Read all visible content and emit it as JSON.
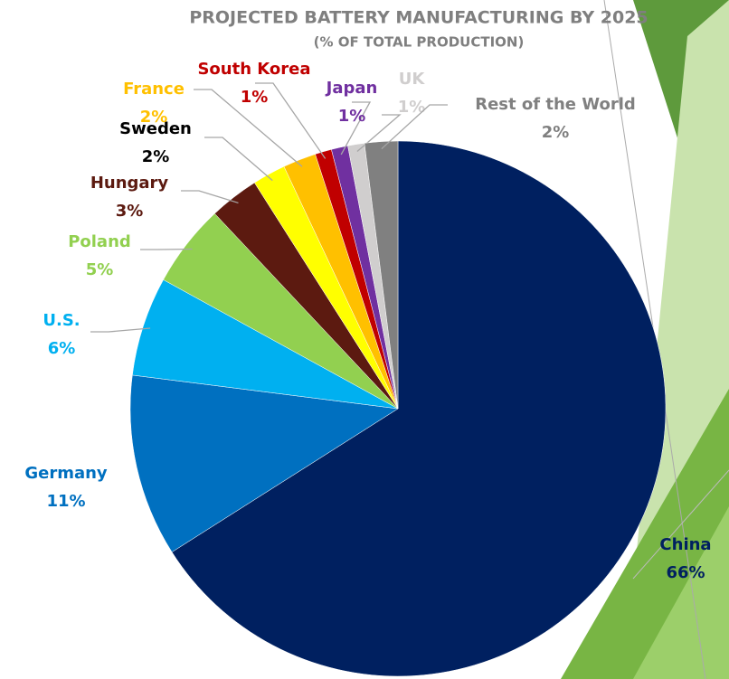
{
  "chart_data": {
    "type": "pie",
    "title": "PROJECTED BATTERY MANUFACTURING BY 2025",
    "subtitle": "(% OF TOTAL PRODUCTION)",
    "categories": [
      "China",
      "Germany",
      "U.S.",
      "Poland",
      "Hungary",
      "Sweden",
      "France",
      "South Korea",
      "Japan",
      "UK",
      "Rest of the World"
    ],
    "values": [
      66,
      11,
      6,
      5,
      3,
      2,
      2,
      1,
      1,
      1,
      2
    ],
    "value_labels": [
      "66%",
      "11%",
      "6%",
      "5%",
      "3%",
      "2%",
      "2%",
      "1%",
      "1%",
      "1%",
      "2%"
    ],
    "colors": [
      "#002060",
      "#0070c0",
      "#00b0f0",
      "#92d050",
      "#5c1a10",
      "#ffff00",
      "#ffc000",
      "#c00000",
      "#7030a0",
      "#d0cece",
      "#808080"
    ],
    "label_colors": [
      "#002060",
      "#0070c0",
      "#00b0f0",
      "#92d050",
      "#5c1a10",
      "#000000",
      "#ffc000",
      "#c00000",
      "#7030a0",
      "#d0cece",
      "#808080"
    ]
  }
}
